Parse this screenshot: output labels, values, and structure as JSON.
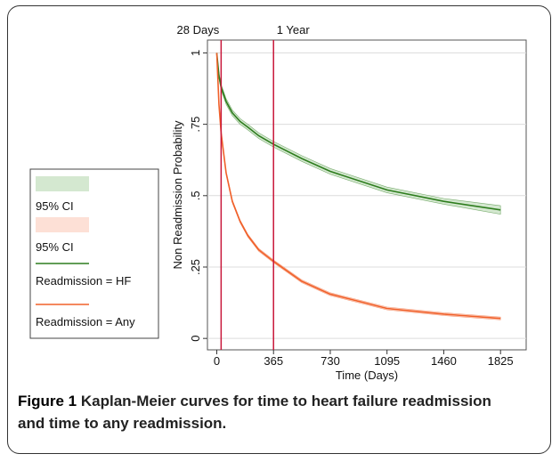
{
  "chart_data": {
    "type": "line",
    "x_label": "Time (Days)",
    "y_label": "Non Readmission Probability",
    "x": [
      0,
      14,
      28,
      60,
      100,
      150,
      200,
      270,
      365,
      547,
      730,
      1095,
      1460,
      1825
    ],
    "series": [
      {
        "name": "Readmission = HF",
        "color": "#2e7d1e",
        "ci_color": "#d4e8d0",
        "ci_name": "95% CI",
        "values": [
          1,
          0.92,
          0.88,
          0.83,
          0.79,
          0.76,
          0.74,
          0.71,
          0.68,
          0.63,
          0.585,
          0.52,
          0.48,
          0.45
        ],
        "ci_lower": [
          1,
          0.91,
          0.87,
          0.82,
          0.78,
          0.75,
          0.73,
          0.7,
          0.67,
          0.62,
          0.575,
          0.51,
          0.47,
          0.435
        ],
        "ci_upper": [
          1,
          0.93,
          0.89,
          0.84,
          0.8,
          0.77,
          0.75,
          0.72,
          0.69,
          0.64,
          0.595,
          0.53,
          0.49,
          0.465
        ]
      },
      {
        "name": "Readmission = Any",
        "color": "#f0602a",
        "ci_color": "#fde0d6",
        "ci_name": "95% CI",
        "values": [
          1,
          0.82,
          0.72,
          0.58,
          0.48,
          0.41,
          0.36,
          0.31,
          0.27,
          0.2,
          0.155,
          0.105,
          0.085,
          0.07
        ],
        "ci_lower": [
          1,
          0.815,
          0.715,
          0.575,
          0.475,
          0.405,
          0.355,
          0.305,
          0.265,
          0.195,
          0.15,
          0.1,
          0.08,
          0.065
        ],
        "ci_upper": [
          1,
          0.825,
          0.725,
          0.585,
          0.485,
          0.415,
          0.365,
          0.315,
          0.275,
          0.205,
          0.16,
          0.11,
          0.09,
          0.075
        ]
      }
    ],
    "reference_lines": [
      {
        "x": 28,
        "label": "28 Days"
      },
      {
        "x": 365,
        "label": "1 Year"
      }
    ],
    "reference_color": "#c8173a",
    "xlim": [
      -60,
      1990
    ],
    "ylim": [
      -0.04,
      1.045
    ],
    "xticks": [
      0,
      365,
      730,
      1095,
      1460,
      1825
    ],
    "yticks": [
      0,
      {
        "value": 0.25,
        "label": ".25"
      },
      {
        "value": 0.5,
        "label": ".5"
      },
      {
        "value": 0.75,
        "label": ".75"
      },
      1
    ],
    "grid": true,
    "legend": "left"
  },
  "caption": {
    "label": "Figure 1",
    "text": "Kaplan-Meier curves for time to heart failure readmission and time to any readmission."
  }
}
